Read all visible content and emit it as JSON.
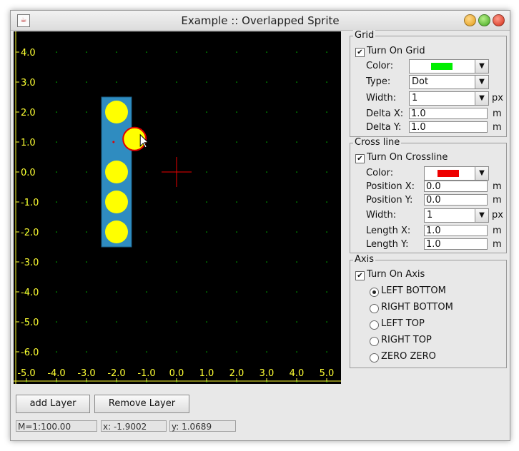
{
  "window": {
    "title": "Example :: Overlapped Sprite",
    "app_icon": "java-cup-icon"
  },
  "colors": {
    "grid": "#00ee00",
    "crossline": "#ee0000",
    "axis": "#ffff33",
    "sprite_body": "#2f8cc0",
    "sprite_circle": "#ffff00",
    "selection": "#e00000"
  },
  "canvas": {
    "x_ticks": [
      "-5.0",
      "-4.0",
      "-3.0",
      "-2.0",
      "-1.0",
      "0.0",
      "1.0",
      "2.0",
      "3.0",
      "4.0",
      "5.0"
    ],
    "y_ticks": [
      "4.0",
      "3.0",
      "2.0",
      "1.0",
      "0.0",
      "-1.0",
      "-2.0",
      "-3.0",
      "-4.0",
      "-5.0",
      "-6.0"
    ],
    "sprite": {
      "circles_y": [
        2.0,
        0.0,
        -1.0,
        -2.0
      ],
      "selected_circle": {
        "x": -1.4,
        "y": 1.1
      }
    }
  },
  "grid": {
    "section_title": "Grid",
    "turn_on_label": "Turn On Grid",
    "turn_on_checked": true,
    "color_label": "Color:",
    "type_label": "Type:",
    "type_value": "Dot",
    "width_label": "Width:",
    "width_value": "1",
    "width_unit": "px",
    "delta_x_label": "Delta X:",
    "delta_x_value": "1.0",
    "delta_y_label": "Delta Y:",
    "delta_y_value": "1.0",
    "unit_m": "m"
  },
  "crossline": {
    "section_title": "Cross line",
    "turn_on_label": "Turn On Crossline",
    "turn_on_checked": true,
    "color_label": "Color:",
    "pos_x_label": "Position X:",
    "pos_x_value": "0.0",
    "pos_y_label": "Position Y:",
    "pos_y_value": "0.0",
    "width_label": "Width:",
    "width_value": "1",
    "width_unit": "px",
    "len_x_label": "Length X:",
    "len_x_value": "1.0",
    "len_y_label": "Length Y:",
    "len_y_value": "1.0",
    "unit_m": "m"
  },
  "axis": {
    "section_title": "Axis",
    "turn_on_label": "Turn On Axis",
    "turn_on_checked": true,
    "options": [
      "LEFT BOTTOM",
      "RIGHT BOTTOM",
      "LEFT TOP",
      "RIGHT TOP",
      "ZERO ZERO"
    ],
    "selected": "LEFT BOTTOM"
  },
  "buttons": {
    "add_layer": "add Layer",
    "remove_layer": "Remove Layer"
  },
  "status": {
    "scale": "M=1:100.00",
    "x": "x: -1.9002",
    "y": "y: 1.0689"
  }
}
